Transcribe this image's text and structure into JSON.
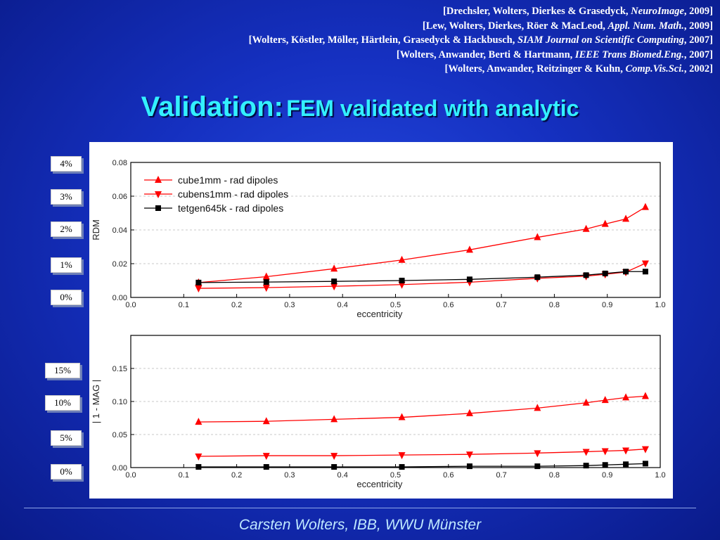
{
  "references": [
    {
      "pre": "[Drechsler, Wolters, Dierkes & Grasedyck, ",
      "journal": "NeuroImage",
      "post": ", 2009]"
    },
    {
      "pre": "[Lew, Wolters, Dierkes, Röer & MacLeod, ",
      "journal": "Appl. Num. Math.",
      "post": ", 2009]"
    },
    {
      "pre": "[Wolters, Köstler, Möller, Härtlein, Grasedyck & Hackbusch, ",
      "journal": "SIAM Journal on Scientific Computing",
      "post": ", 2007]"
    },
    {
      "pre": "[Wolters, Anwander, Berti & Hartmann, ",
      "journal": "IEEE Trans Biomed.Eng.",
      "post": ", 2007]"
    },
    {
      "pre": "[Wolters, Anwander, Reitzinger & Kuhn, ",
      "journal": "Comp.Vis.Sci.",
      "post": ", 2002]"
    }
  ],
  "title": {
    "main": "Validation:",
    "sub": "FEM validated with analytic"
  },
  "footer": "Carsten Wolters, IBB, WWU Münster",
  "percent_labels_top": [
    "4%",
    "3%",
    "2%",
    "1%",
    "0%"
  ],
  "percent_labels_bottom": [
    "15%",
    "10%",
    "5%",
    "0%"
  ],
  "colors": {
    "red": "#ff0000",
    "black": "#000000"
  },
  "chart_data": [
    {
      "type": "line",
      "xlabel": "eccentricity",
      "ylabel": "RDM",
      "xlim": [
        0.0,
        1.0
      ],
      "ylim": [
        0.0,
        0.08
      ],
      "xticks": [
        "0.0",
        "0.1",
        "0.2",
        "0.3",
        "0.4",
        "0.5",
        "0.6",
        "0.7",
        "0.8",
        "0.9",
        "1.0"
      ],
      "yticks": [
        "0.00",
        "0.02",
        "0.04",
        "0.06",
        "0.08"
      ],
      "grid": true,
      "legend": "top-left",
      "x": [
        0.128,
        0.256,
        0.384,
        0.512,
        0.64,
        0.768,
        0.86,
        0.896,
        0.935,
        0.972
      ],
      "series": [
        {
          "name": "cube1mm - rad dipoles",
          "marker": "triangle-up",
          "color": "#ff0000",
          "values": [
            0.0088,
            0.0123,
            0.017,
            0.0222,
            0.0282,
            0.0356,
            0.0405,
            0.0435,
            0.0465,
            0.0535
          ]
        },
        {
          "name": "cubens1mm - rad dipoles",
          "marker": "triangle-down",
          "color": "#ff0000",
          "values": [
            0.0054,
            0.0058,
            0.0066,
            0.0076,
            0.009,
            0.0113,
            0.0126,
            0.0137,
            0.015,
            0.0202
          ]
        },
        {
          "name": "tetgen645k - rad dipoles",
          "marker": "square",
          "color": "#000000",
          "values": [
            0.0088,
            0.0091,
            0.0095,
            0.01,
            0.0107,
            0.012,
            0.0132,
            0.0142,
            0.0153,
            0.0153
          ]
        }
      ]
    },
    {
      "type": "line",
      "xlabel": "eccentricity",
      "ylabel": "| 1 - MAG |",
      "xlim": [
        0.0,
        1.0
      ],
      "ylim": [
        0.0,
        0.2
      ],
      "xticks": [
        "0.0",
        "0.1",
        "0.2",
        "0.3",
        "0.4",
        "0.5",
        "0.6",
        "0.7",
        "0.8",
        "0.9",
        "1.0"
      ],
      "yticks": [
        "0.00",
        "0.05",
        "0.10",
        "0.15"
      ],
      "grid": true,
      "x": [
        0.128,
        0.256,
        0.384,
        0.512,
        0.64,
        0.768,
        0.86,
        0.896,
        0.935,
        0.972
      ],
      "series": [
        {
          "marker": "triangle-up",
          "color": "#ff0000",
          "values": [
            0.069,
            0.07,
            0.073,
            0.076,
            0.082,
            0.09,
            0.098,
            0.102,
            0.106,
            0.108
          ]
        },
        {
          "marker": "triangle-down",
          "color": "#ff0000",
          "values": [
            0.017,
            0.018,
            0.018,
            0.019,
            0.02,
            0.022,
            0.024,
            0.025,
            0.026,
            0.028
          ]
        },
        {
          "marker": "square",
          "color": "#000000",
          "values": [
            0.001,
            0.001,
            0.001,
            0.001,
            0.002,
            0.002,
            0.003,
            0.004,
            0.005,
            0.006
          ]
        }
      ]
    }
  ]
}
